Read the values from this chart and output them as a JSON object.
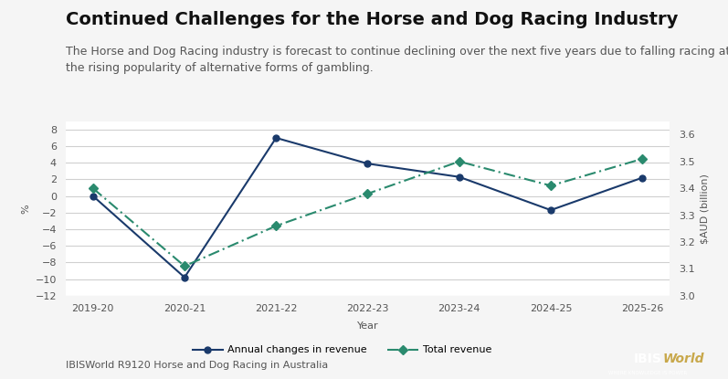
{
  "title": "Continued Challenges for the Horse and Dog Racing Industry",
  "subtitle": "The Horse and Dog Racing industry is forecast to continue declining over the next five years due to falling racing attendances and\nthe rising popularity of alternative forms of gambling.",
  "years": [
    "2019-20",
    "2020-21",
    "2021-22",
    "2022-23",
    "2023-24",
    "2024-25",
    "2025-26"
  ],
  "annual_changes": [
    0.0,
    -9.8,
    7.0,
    3.9,
    2.3,
    -1.7,
    2.2
  ],
  "total_revenue": [
    3.4,
    3.11,
    3.26,
    3.38,
    3.5,
    3.41,
    3.51
  ],
  "left_ylim": [
    -12,
    9
  ],
  "left_yticks": [
    -12,
    -10,
    -8,
    -6,
    -4,
    -2,
    0,
    2,
    4,
    6,
    8
  ],
  "right_ylim": [
    3.0,
    3.65
  ],
  "right_yticks": [
    3.0,
    3.1,
    3.2,
    3.3,
    3.4,
    3.5,
    3.6
  ],
  "left_ylabel": "%",
  "right_ylabel": "$AUD (billion)",
  "xlabel": "Year",
  "line1_color": "#1a3a6b",
  "line2_color": "#2a8a6e",
  "background_color": "#f5f5f5",
  "plot_bg_color": "#ffffff",
  "legend1": "Annual changes in revenue",
  "legend2": "Total revenue",
  "footer_left": "IBISWorld R9120 Horse and Dog Racing in Australia",
  "title_fontsize": 14,
  "subtitle_fontsize": 9,
  "axis_fontsize": 8,
  "tick_fontsize": 8,
  "footer_fontsize": 8
}
